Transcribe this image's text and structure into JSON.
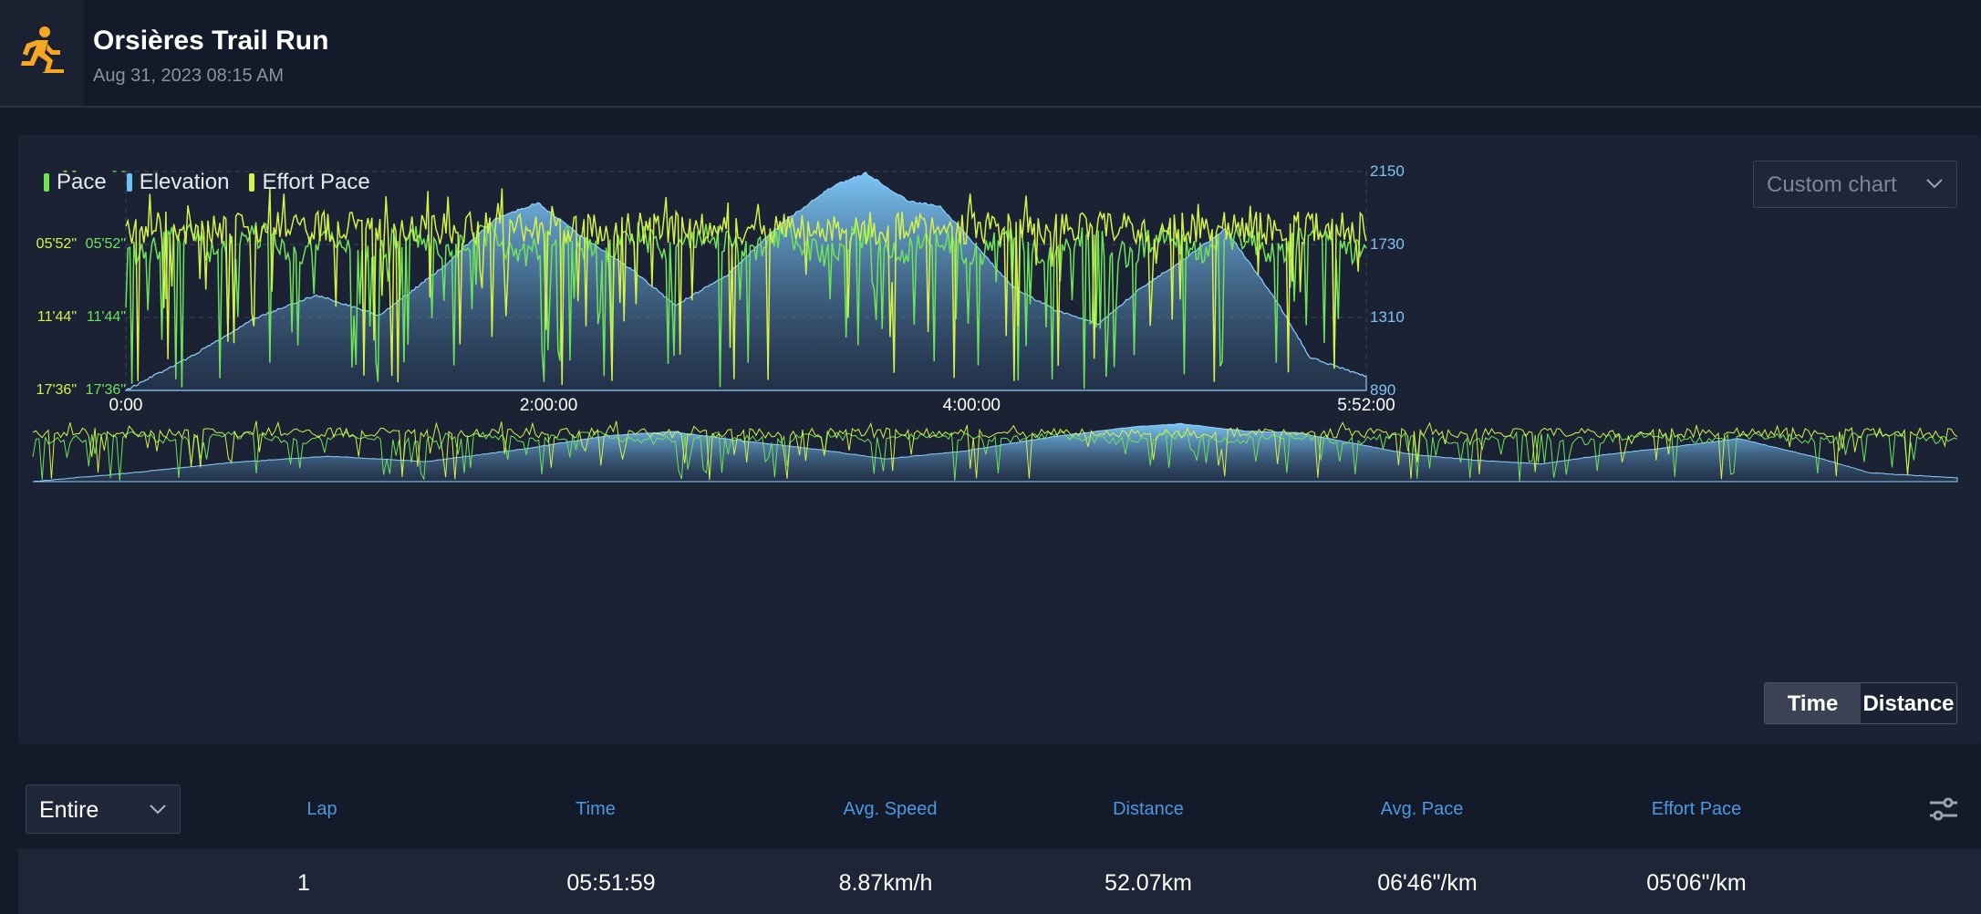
{
  "activity": {
    "title": "Orsières Trail Run",
    "date": "Aug 31, 2023 08:15 AM",
    "icon": "runner-icon",
    "accent_color": "#f5a623"
  },
  "chart_panel": {
    "legend": [
      {
        "label": "Pace",
        "color": "#6fe35a"
      },
      {
        "label": "Elevation",
        "color": "#6ec1f5"
      },
      {
        "label": "Effort Pace",
        "color": "#d4f24a"
      }
    ],
    "custom_chart_label": "Custom chart",
    "toggle": {
      "time_label": "Time",
      "distance_label": "Distance",
      "selected": "Time"
    }
  },
  "chart_data": {
    "type": "line",
    "x_axis": {
      "ticks": [
        "0:00",
        "2:00:00",
        "4:00:00",
        "5:52:00"
      ],
      "range_seconds": [
        0,
        21120
      ]
    },
    "y_axis_left_effort": {
      "ticks": [
        "- -",
        "05'52\"",
        "11'44\"",
        "17'36\""
      ]
    },
    "y_axis_left_pace": {
      "ticks": [
        "- -",
        "05'52\"",
        "11'44\"",
        "17'36\""
      ]
    },
    "y_axis_right_elevation": {
      "ticks": [
        "2150",
        "1730",
        "1310",
        "890"
      ],
      "ylim": [
        890,
        2150
      ]
    },
    "elevation_profile": {
      "x_hours": [
        0,
        0.3,
        0.6,
        0.9,
        1.2,
        1.5,
        1.75,
        1.95,
        2.15,
        2.4,
        2.6,
        2.85,
        3.1,
        3.35,
        3.5,
        3.7,
        3.85,
        4.0,
        4.2,
        4.4,
        4.6,
        4.8,
        5.0,
        5.2,
        5.45,
        5.6,
        5.867
      ],
      "y_m": [
        890,
        1080,
        1300,
        1440,
        1320,
        1600,
        1880,
        1970,
        1780,
        1580,
        1380,
        1560,
        1850,
        2070,
        2140,
        1980,
        1950,
        1750,
        1480,
        1350,
        1270,
        1480,
        1640,
        1820,
        1390,
        1080,
        970
      ]
    },
    "series": [
      {
        "name": "Pace",
        "color": "#6fe35a",
        "typical": "about 06'46\"/km, frequent drops toward 17'36\""
      },
      {
        "name": "Elevation",
        "color": "#6ec1f5"
      },
      {
        "name": "Effort Pace",
        "color": "#d4f24a",
        "typical": "about 05'06\"/km with spikes"
      }
    ],
    "grid": true,
    "legend_position": "top-left"
  },
  "laps_table": {
    "range_select": "Entire",
    "columns": [
      "Lap",
      "Time",
      "Avg. Speed",
      "Distance",
      "Avg. Pace",
      "Effort Pace"
    ],
    "rows": [
      {
        "lap": "1",
        "time": "05:51:59",
        "avg_speed": "8.87km/h",
        "distance": "52.07km",
        "avg_pace": "06'46\"/km",
        "effort_pace": "05'06\"/km"
      }
    ]
  }
}
